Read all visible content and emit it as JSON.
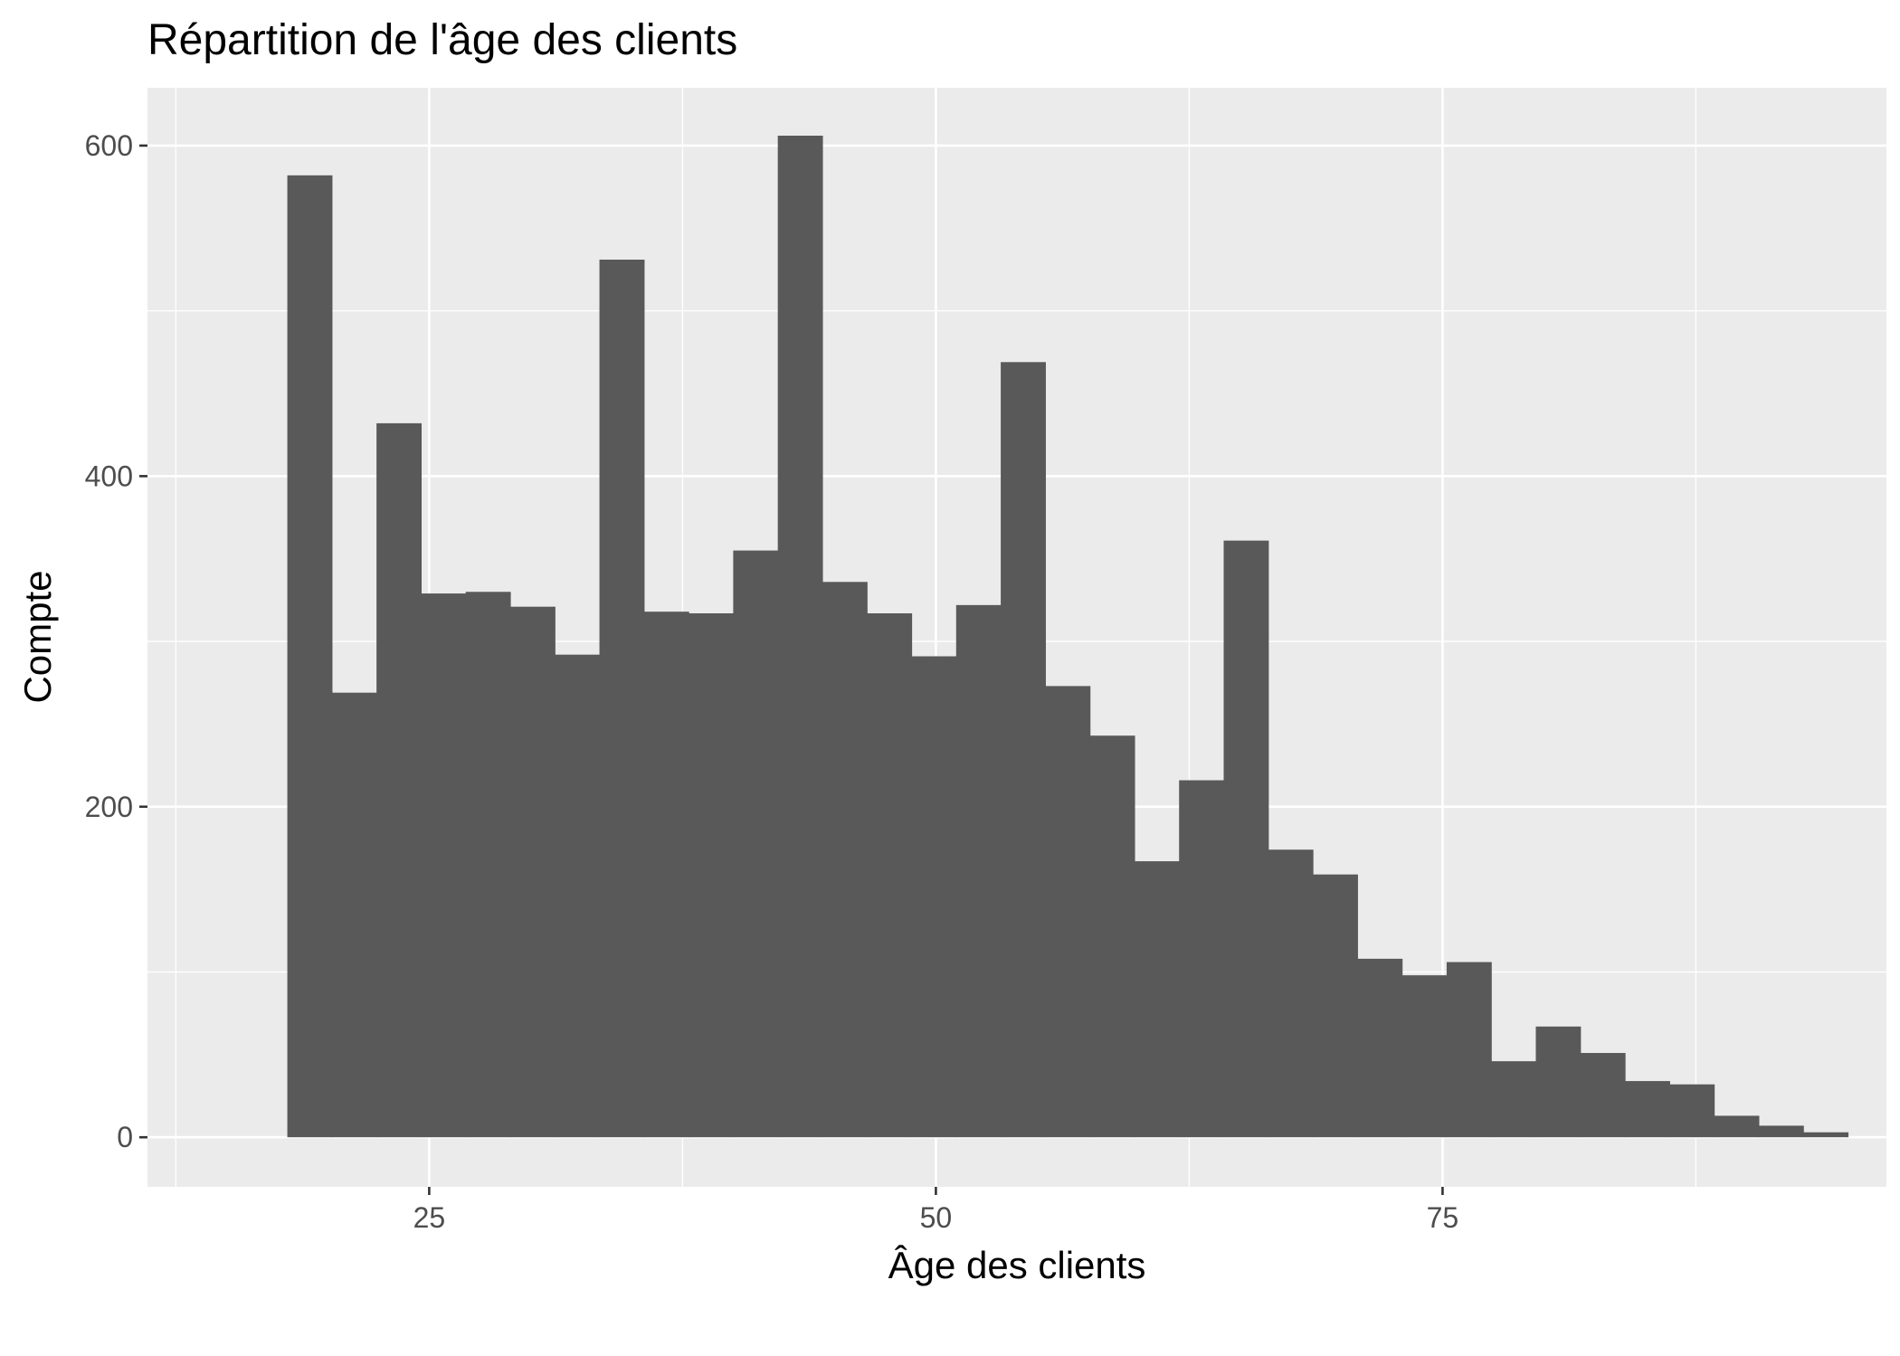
{
  "chart_data": {
    "type": "bar",
    "title": "Répartition de l'âge des clients",
    "xlabel": "Âge des clients",
    "ylabel": "Compte",
    "xlim": [
      11.1,
      96.9
    ],
    "ylim": [
      -30,
      635
    ],
    "x_ticks": [
      25,
      50,
      75
    ],
    "y_ticks": [
      0,
      200,
      400,
      600
    ],
    "grid": true,
    "legend": "none",
    "colors": {
      "bar": "#595959",
      "panel": "#ebebeb",
      "grid": "#ffffff",
      "tick_label": "#4d4d4d"
    },
    "bin_width": 2.2,
    "bin_starts": [
      18.0,
      20.2,
      22.4,
      24.6,
      26.8,
      29.0,
      31.2,
      33.4,
      35.6,
      37.8,
      40.0,
      42.2,
      44.4,
      46.6,
      48.8,
      51.0,
      53.2,
      55.4,
      57.6,
      59.8,
      62.0,
      64.2,
      66.4,
      68.6,
      70.8,
      73.0,
      75.2,
      77.4,
      79.6,
      81.8,
      84.0,
      86.2,
      88.4,
      90.6,
      92.8
    ],
    "values": [
      582,
      269,
      432,
      329,
      330,
      321,
      292,
      531,
      318,
      317,
      355,
      606,
      336,
      317,
      291,
      322,
      469,
      273,
      243,
      167,
      216,
      361,
      174,
      159,
      108,
      98,
      106,
      46,
      67,
      51,
      34,
      32,
      13,
      7,
      3
    ]
  }
}
